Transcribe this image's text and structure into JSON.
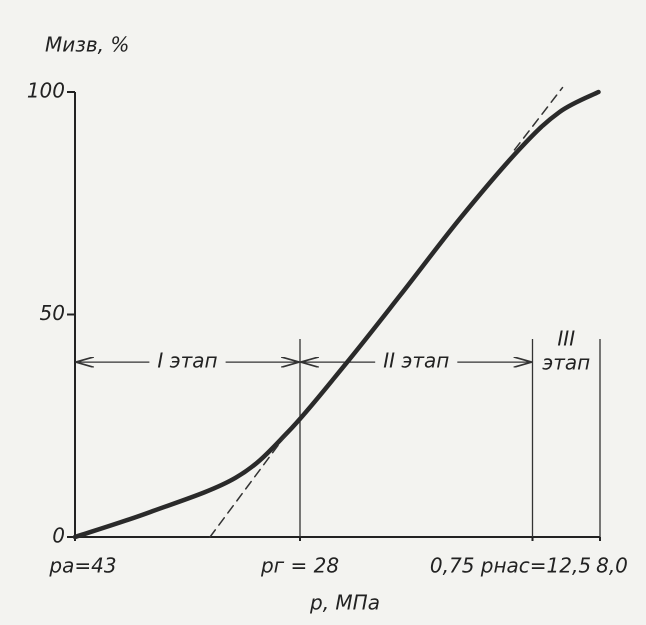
{
  "chart_data": {
    "type": "line",
    "ylabel": "Mизв, %",
    "xlabel": "p, МПа",
    "xlim": [
      43,
      8
    ],
    "xticks": [
      {
        "value": 43,
        "label": "pа=43"
      },
      {
        "value": 28,
        "label": "pг = 28"
      },
      {
        "value": 12.5,
        "label": "0,75 pнас=12,5"
      },
      {
        "value": 8,
        "label": "8,0"
      }
    ],
    "ylim": [
      0,
      100
    ],
    "yticks": [
      0,
      50,
      100
    ],
    "grid": false,
    "series": [
      {
        "color": "#2a2a2a",
        "dash": false,
        "x": [
          43,
          38,
          32.3,
          28.8,
          25,
          21.3,
          17.3,
          13.3,
          10.7,
          8.1
        ],
        "values": [
          0,
          5.6,
          13.3,
          23.6,
          38.7,
          54.4,
          71.7,
          87.4,
          95.5,
          100
        ]
      },
      {
        "color": "#333333",
        "dash": true,
        "x": [
          34,
          28.8
        ],
        "values": [
          0,
          23.6
        ]
      },
      {
        "color": "#333333",
        "dash": true,
        "x": [
          13.7,
          10.5
        ],
        "values": [
          87,
          101
        ]
      }
    ],
    "stages": [
      {
        "label": "I этап"
      },
      {
        "label": "II этап"
      },
      {
        "label": [
          "III",
          "этап"
        ]
      }
    ]
  }
}
